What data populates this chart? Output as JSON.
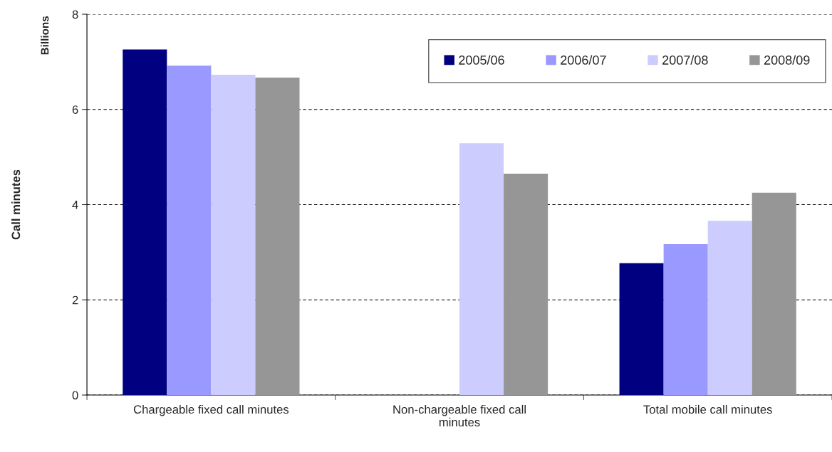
{
  "chart_data": {
    "type": "bar",
    "categories": [
      "Chargeable fixed call minutes",
      "Non-chargeable fixed call minutes",
      "Total mobile call minutes"
    ],
    "series": [
      {
        "name": "2005/06",
        "color": "#000080",
        "values": [
          7.26,
          null,
          2.77
        ]
      },
      {
        "name": "2006/07",
        "color": "#9999ff",
        "values": [
          6.92,
          null,
          3.17
        ]
      },
      {
        "name": "2007/08",
        "color": "#ccccff",
        "values": [
          6.73,
          5.29,
          3.66
        ]
      },
      {
        "name": "2008/09",
        "color": "#969696",
        "values": [
          6.67,
          4.65,
          4.25
        ]
      }
    ],
    "ylabel": "Call minutes",
    "annotations": [
      "Billions"
    ],
    "ylim": [
      0,
      8
    ],
    "yticks": [
      0,
      2,
      4,
      6,
      8
    ],
    "grid": "y",
    "legend": "top right"
  }
}
